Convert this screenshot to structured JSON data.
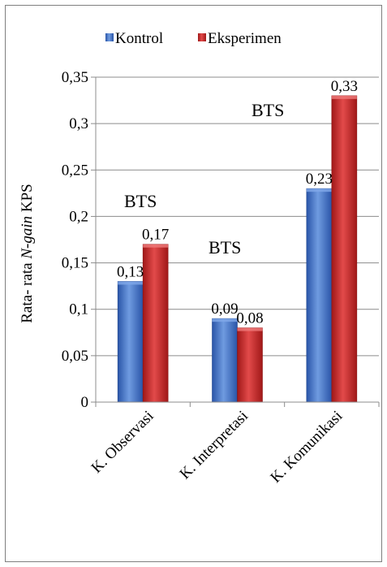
{
  "chart_data": {
    "type": "bar",
    "categories": [
      "K. Observasi",
      "K. Interpretasi",
      "K. Komunikasi"
    ],
    "series": [
      {
        "name": "Kontrol",
        "values": [
          0.13,
          0.09,
          0.23
        ],
        "labels": [
          "0,13",
          "0,09",
          "0,23"
        ],
        "color": "#3a6fc4"
      },
      {
        "name": "Eksperimen",
        "values": [
          0.17,
          0.08,
          0.33
        ],
        "labels": [
          "0,17",
          "0,08",
          "0,33"
        ],
        "color": "#c42a2a"
      }
    ],
    "ylabel_prefix": "Rata- rata ",
    "ylabel_italic": "N-gain",
    "ylabel_suffix": " KPS",
    "ylim": [
      0,
      0.35
    ],
    "yticks": [
      0,
      0.05,
      0.1,
      0.15,
      0.2,
      0.25,
      0.3,
      0.35
    ],
    "ytick_labels": [
      "0",
      "0,05",
      "0,1",
      "0,15",
      "0,2",
      "0,25",
      "0,3",
      "0,35"
    ],
    "annotations": [
      "BTS",
      "BTS",
      "BTS"
    ],
    "grid": true,
    "legend_position": "top"
  }
}
